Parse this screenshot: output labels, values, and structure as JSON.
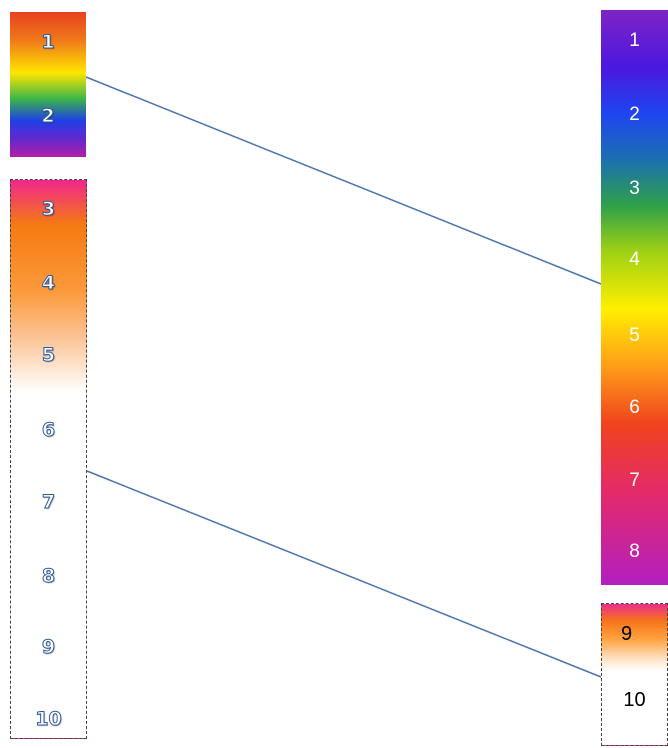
{
  "left_top": {
    "labels": [
      "1",
      "2"
    ]
  },
  "left_bottom": {
    "labels": [
      "3",
      "4",
      "5",
      "6",
      "7",
      "8",
      "9",
      "10"
    ]
  },
  "right_top": {
    "labels": [
      "1",
      "2",
      "3",
      "4",
      "5",
      "6",
      "7",
      "8"
    ]
  },
  "right_bottom": {
    "labels": [
      "9",
      "10"
    ]
  },
  "colors": {
    "connector": "#4a73b0",
    "label_outline": "#2e5ba0"
  }
}
